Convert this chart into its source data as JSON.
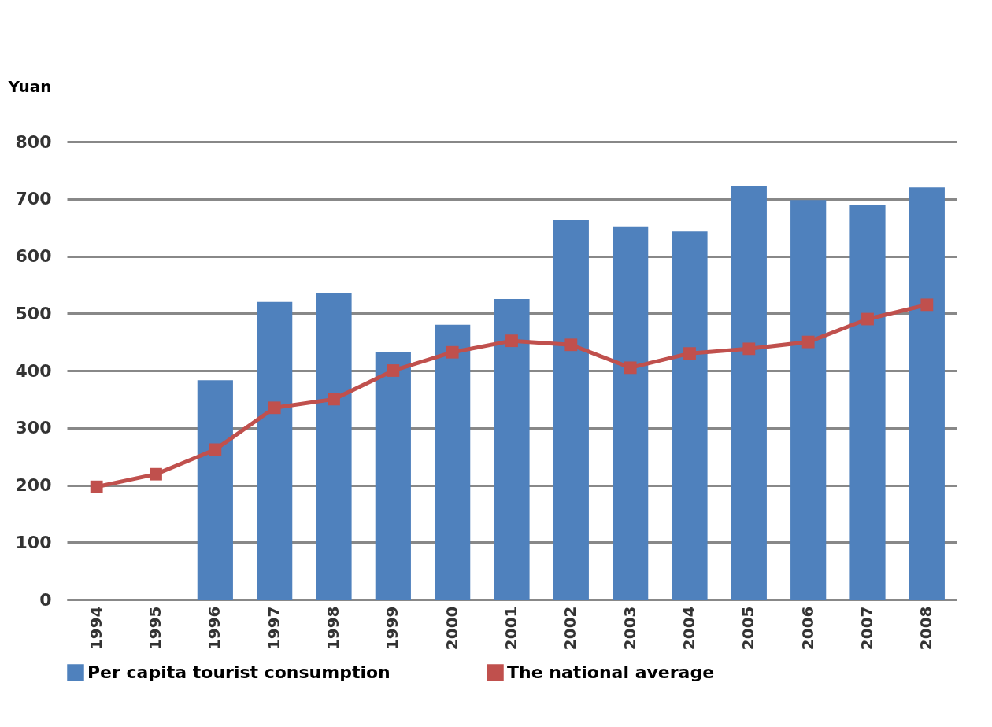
{
  "chart_data": {
    "type": "bar",
    "ylabel": "Yuan",
    "categories": [
      "1994",
      "1995",
      "1996",
      "1997",
      "1998",
      "1999",
      "2000",
      "2001",
      "2002",
      "2003",
      "2004",
      "2005",
      "2006",
      "2007",
      "2008"
    ],
    "series": [
      {
        "name": "Per capita tourist consumption",
        "color": "#4f81bd",
        "values": [
          null,
          null,
          383,
          520,
          535,
          432,
          480,
          525,
          663,
          652,
          643,
          723,
          698,
          690,
          720
        ]
      },
      {
        "name": "The national average",
        "type": "line",
        "color": "#c0504d",
        "values": [
          197,
          219,
          262,
          335,
          350,
          400,
          432,
          452,
          445,
          405,
          430,
          438,
          450,
          490,
          515
        ]
      }
    ],
    "ylim": [
      0,
      800
    ],
    "yticks": [
      0,
      100,
      200,
      300,
      400,
      500,
      600,
      700,
      800
    ],
    "grid": "y",
    "legend": "bottom",
    "marker": "square"
  }
}
